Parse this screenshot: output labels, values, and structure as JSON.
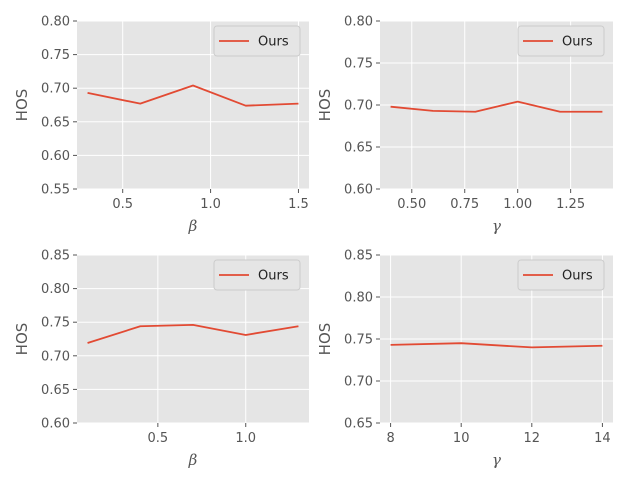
{
  "chart_data": [
    {
      "type": "line",
      "title": "",
      "xlabel": "β",
      "ylabel": "HOS",
      "x": [
        0.3,
        0.6,
        0.9,
        1.2,
        1.5
      ],
      "series": [
        {
          "name": "Ours",
          "values": [
            0.693,
            0.677,
            0.704,
            0.674,
            0.677
          ],
          "color": "#E24A33"
        }
      ],
      "xlim": [
        0.24,
        1.56
      ],
      "ylim": [
        0.55,
        0.8
      ],
      "xticks": [
        0.5,
        1.0,
        1.5
      ],
      "xtick_labels": [
        "0.5",
        "1.0",
        "1.5"
      ],
      "yticks": [
        0.55,
        0.6,
        0.65,
        0.7,
        0.75,
        0.8
      ],
      "ytick_labels": [
        "0.55",
        "0.60",
        "0.65",
        "0.70",
        "0.75",
        "0.80"
      ],
      "grid": true,
      "legend": "upper right"
    },
    {
      "type": "line",
      "title": "",
      "xlabel": "γ",
      "ylabel": "HOS",
      "x": [
        0.4,
        0.6,
        0.8,
        1.0,
        1.2,
        1.4
      ],
      "series": [
        {
          "name": "Ours",
          "values": [
            0.698,
            0.693,
            0.692,
            0.704,
            0.692,
            0.692
          ],
          "color": "#E24A33"
        }
      ],
      "xlim": [
        0.35,
        1.45
      ],
      "ylim": [
        0.6,
        0.8
      ],
      "xticks": [
        0.5,
        0.75,
        1.0,
        1.25
      ],
      "xtick_labels": [
        "0.50",
        "0.75",
        "1.00",
        "1.25"
      ],
      "yticks": [
        0.6,
        0.65,
        0.7,
        0.75,
        0.8
      ],
      "ytick_labels": [
        "0.60",
        "0.65",
        "0.70",
        "0.75",
        "0.80"
      ],
      "grid": true,
      "legend": "upper right"
    },
    {
      "type": "line",
      "title": "",
      "xlabel": "β",
      "ylabel": "HOS",
      "x": [
        0.1,
        0.4,
        0.7,
        1.0,
        1.3
      ],
      "series": [
        {
          "name": "Ours",
          "values": [
            0.719,
            0.744,
            0.746,
            0.731,
            0.744
          ],
          "color": "#E24A33"
        }
      ],
      "xlim": [
        0.04,
        1.36
      ],
      "ylim": [
        0.6,
        0.85
      ],
      "xticks": [
        0.5,
        1.0
      ],
      "xtick_labels": [
        "0.5",
        "1.0"
      ],
      "yticks": [
        0.6,
        0.65,
        0.7,
        0.75,
        0.8,
        0.85
      ],
      "ytick_labels": [
        "0.60",
        "0.65",
        "0.70",
        "0.75",
        "0.80",
        "0.85"
      ],
      "grid": true,
      "legend": "upper right"
    },
    {
      "type": "line",
      "title": "",
      "xlabel": "γ",
      "ylabel": "HOS",
      "x": [
        8,
        10,
        12,
        14
      ],
      "series": [
        {
          "name": "Ours",
          "values": [
            0.743,
            0.745,
            0.74,
            0.742
          ],
          "color": "#E24A33"
        }
      ],
      "xlim": [
        7.7,
        14.3
      ],
      "ylim": [
        0.65,
        0.85
      ],
      "xticks": [
        8,
        10,
        12,
        14
      ],
      "xtick_labels": [
        "8",
        "10",
        "12",
        "14"
      ],
      "yticks": [
        0.65,
        0.7,
        0.75,
        0.8,
        0.85
      ],
      "ytick_labels": [
        "0.65",
        "0.70",
        "0.75",
        "0.80",
        "0.85"
      ],
      "grid": true,
      "legend": "upper right"
    }
  ]
}
